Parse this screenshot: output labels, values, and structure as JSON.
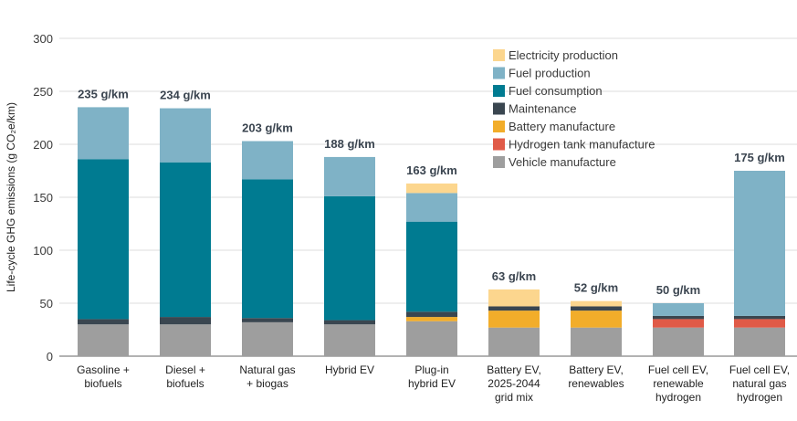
{
  "chart_data": {
    "type": "bar",
    "stacked": true,
    "ylabel": "Life-cycle GHG emissions (g CO₂e/km)",
    "ylim": [
      0,
      300
    ],
    "yticks": [
      0,
      50,
      100,
      150,
      200,
      250,
      300
    ],
    "grid": true,
    "legend_position": "top-right",
    "categories": [
      [
        "Gasoline +",
        "biofuels"
      ],
      [
        "Diesel +",
        "biofuels"
      ],
      [
        "Natural gas",
        "+ biogas"
      ],
      [
        "Hybrid EV"
      ],
      [
        "Plug-in",
        "hybrid EV"
      ],
      [
        "Battery EV,",
        "2025-2044",
        "grid mix"
      ],
      [
        "Battery EV,",
        "renewables"
      ],
      [
        "Fuel cell EV,",
        "renewable",
        "hydrogen"
      ],
      [
        "Fuel cell EV,",
        "natural gas",
        "hydrogen"
      ]
    ],
    "totals": [
      "235 g/km",
      "234 g/km",
      "203 g/km",
      "188 g/km",
      "163 g/km",
      "63 g/km",
      "52 g/km",
      "50 g/km",
      "175 g/km"
    ],
    "series": [
      {
        "name": "Vehicle manufacture",
        "color": "#9e9e9e",
        "values": [
          30,
          30,
          32,
          30,
          33,
          27,
          27,
          27,
          27
        ]
      },
      {
        "name": "Hydrogen tank manufacture",
        "color": "#e05a47",
        "values": [
          0,
          0,
          0,
          0,
          0,
          0,
          0,
          8,
          8
        ]
      },
      {
        "name": "Battery manufacture",
        "color": "#f2ad2a",
        "values": [
          0,
          0,
          0,
          0,
          4,
          16,
          16,
          0,
          0
        ]
      },
      {
        "name": "Maintenance",
        "color": "#3a4650",
        "values": [
          5,
          7,
          4,
          4,
          5,
          4,
          4,
          3,
          3
        ]
      },
      {
        "name": "Fuel consumption",
        "color": "#007b91",
        "values": [
          151,
          146,
          131,
          117,
          85,
          0,
          0,
          0,
          0
        ]
      },
      {
        "name": "Fuel production",
        "color": "#7fb2c6",
        "values": [
          49,
          51,
          36,
          37,
          27,
          0,
          0,
          12,
          137
        ]
      },
      {
        "name": "Electricity production",
        "color": "#fcd68e",
        "values": [
          0,
          0,
          0,
          0,
          9,
          16,
          5,
          0,
          0
        ]
      }
    ],
    "legend_order": [
      "Electricity production",
      "Fuel production",
      "Fuel consumption",
      "Maintenance",
      "Battery manufacture",
      "Hydrogen tank manufacture",
      "Vehicle manufacture"
    ]
  }
}
